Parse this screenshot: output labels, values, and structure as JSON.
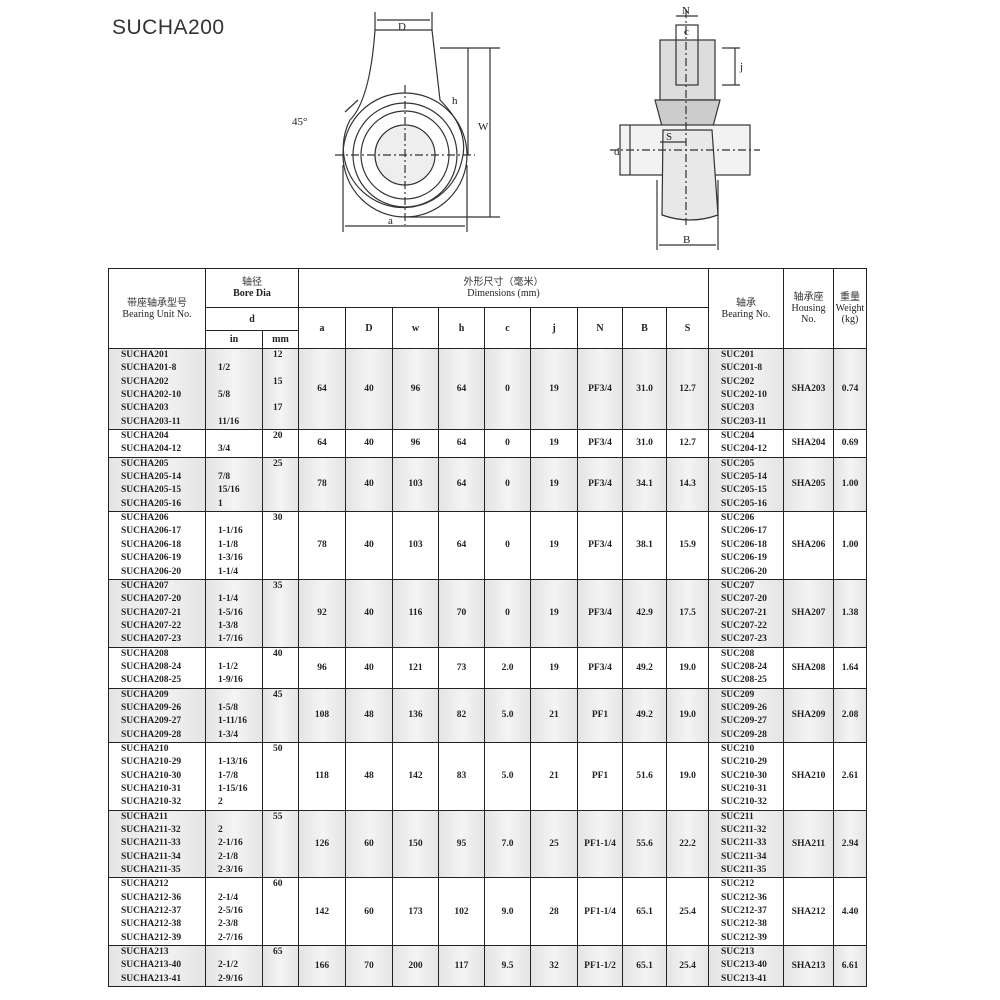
{
  "title": "SUCHA200",
  "drawing_labels": {
    "D": "D",
    "h": "h",
    "W": "W",
    "a": "a",
    "angle": "45°",
    "N": "N",
    "c": "c",
    "j": "j",
    "S": "S",
    "d": "d",
    "B": "B"
  },
  "header": {
    "unit_cn": "带座轴承型号",
    "unit_en": "Bearing Unit No.",
    "bore_cn": "轴径",
    "bore_en": "Bore Dia",
    "d": "d",
    "in": "in",
    "mm": "mm",
    "dims_cn": "外形尺寸（毫米）",
    "dims_en": "Dimensions (mm)",
    "cols": [
      "a",
      "D",
      "w",
      "h",
      "c",
      "j",
      "N",
      "B",
      "S"
    ],
    "bearing_cn": "轴承",
    "bearing_en": "Bearing No.",
    "housing_cn": "轴承座",
    "housing_en": "Housing No.",
    "weight_cn": "重量",
    "weight_en": "Weight (kg)"
  },
  "groups": [
    {
      "units": [
        {
          "no": "SUCHA201",
          "in": "",
          "mm": "12"
        },
        {
          "no": "SUCHA201-8",
          "in": "1/2",
          "mm": ""
        },
        {
          "no": "SUCHA202",
          "in": "",
          "mm": "15"
        },
        {
          "no": "SUCHA202-10",
          "in": "5/8",
          "mm": ""
        },
        {
          "no": "SUCHA203",
          "in": "",
          "mm": "17"
        },
        {
          "no": "SUCHA203-11",
          "in": "11/16",
          "mm": ""
        }
      ],
      "dims": [
        "64",
        "40",
        "96",
        "64",
        "0",
        "19",
        "PF3/4",
        "31.0",
        "12.7"
      ],
      "bearings": [
        "SUC201",
        "SUC201-8",
        "SUC202",
        "SUC202-10",
        "SUC203",
        "SUC203-11"
      ],
      "housing": "SHA203",
      "weight": "0.74"
    },
    {
      "units": [
        {
          "no": "SUCHA204",
          "in": "",
          "mm": "20"
        },
        {
          "no": "SUCHA204-12",
          "in": "3/4",
          "mm": ""
        }
      ],
      "dims": [
        "64",
        "40",
        "96",
        "64",
        "0",
        "19",
        "PF3/4",
        "31.0",
        "12.7"
      ],
      "bearings": [
        "SUC204",
        "SUC204-12"
      ],
      "housing": "SHA204",
      "weight": "0.69"
    },
    {
      "units": [
        {
          "no": "SUCHA205",
          "in": "",
          "mm": "25"
        },
        {
          "no": "SUCHA205-14",
          "in": "7/8",
          "mm": ""
        },
        {
          "no": "SUCHA205-15",
          "in": "15/16",
          "mm": ""
        },
        {
          "no": "SUCHA205-16",
          "in": "1",
          "mm": ""
        }
      ],
      "dims": [
        "78",
        "40",
        "103",
        "64",
        "0",
        "19",
        "PF3/4",
        "34.1",
        "14.3"
      ],
      "bearings": [
        "SUC205",
        "SUC205-14",
        "SUC205-15",
        "SUC205-16"
      ],
      "housing": "SHA205",
      "weight": "1.00"
    },
    {
      "units": [
        {
          "no": "SUCHA206",
          "in": "",
          "mm": "30"
        },
        {
          "no": "SUCHA206-17",
          "in": "1-1/16",
          "mm": ""
        },
        {
          "no": "SUCHA206-18",
          "in": "1-1/8",
          "mm": ""
        },
        {
          "no": "SUCHA206-19",
          "in": "1-3/16",
          "mm": ""
        },
        {
          "no": "SUCHA206-20",
          "in": "1-1/4",
          "mm": ""
        }
      ],
      "dims": [
        "78",
        "40",
        "103",
        "64",
        "0",
        "19",
        "PF3/4",
        "38.1",
        "15.9"
      ],
      "bearings": [
        "SUC206",
        "SUC206-17",
        "SUC206-18",
        "SUC206-19",
        "SUC206-20"
      ],
      "housing": "SHA206",
      "weight": "1.00"
    },
    {
      "units": [
        {
          "no": "SUCHA207",
          "in": "",
          "mm": "35"
        },
        {
          "no": "SUCHA207-20",
          "in": "1-1/4",
          "mm": ""
        },
        {
          "no": "SUCHA207-21",
          "in": "1-5/16",
          "mm": ""
        },
        {
          "no": "SUCHA207-22",
          "in": "1-3/8",
          "mm": ""
        },
        {
          "no": "SUCHA207-23",
          "in": "1-7/16",
          "mm": ""
        }
      ],
      "dims": [
        "92",
        "40",
        "116",
        "70",
        "0",
        "19",
        "PF3/4",
        "42.9",
        "17.5"
      ],
      "bearings": [
        "SUC207",
        "SUC207-20",
        "SUC207-21",
        "SUC207-22",
        "SUC207-23"
      ],
      "housing": "SHA207",
      "weight": "1.38"
    },
    {
      "units": [
        {
          "no": "SUCHA208",
          "in": "",
          "mm": "40"
        },
        {
          "no": "SUCHA208-24",
          "in": "1-1/2",
          "mm": ""
        },
        {
          "no": "SUCHA208-25",
          "in": "1-9/16",
          "mm": ""
        }
      ],
      "dims": [
        "96",
        "40",
        "121",
        "73",
        "2.0",
        "19",
        "PF3/4",
        "49.2",
        "19.0"
      ],
      "bearings": [
        "SUC208",
        "SUC208-24",
        "SUC208-25"
      ],
      "housing": "SHA208",
      "weight": "1.64"
    },
    {
      "units": [
        {
          "no": "SUCHA209",
          "in": "",
          "mm": "45"
        },
        {
          "no": "SUCHA209-26",
          "in": "1-5/8",
          "mm": ""
        },
        {
          "no": "SUCHA209-27",
          "in": "1-11/16",
          "mm": ""
        },
        {
          "no": "SUCHA209-28",
          "in": "1-3/4",
          "mm": ""
        }
      ],
      "dims": [
        "108",
        "48",
        "136",
        "82",
        "5.0",
        "21",
        "PF1",
        "49.2",
        "19.0"
      ],
      "bearings": [
        "SUC209",
        "SUC209-26",
        "SUC209-27",
        "SUC209-28"
      ],
      "housing": "SHA209",
      "weight": "2.08"
    },
    {
      "units": [
        {
          "no": "SUCHA210",
          "in": "",
          "mm": "50"
        },
        {
          "no": "SUCHA210-29",
          "in": "1-13/16",
          "mm": ""
        },
        {
          "no": "SUCHA210-30",
          "in": "1-7/8",
          "mm": ""
        },
        {
          "no": "SUCHA210-31",
          "in": "1-15/16",
          "mm": ""
        },
        {
          "no": "SUCHA210-32",
          "in": "2",
          "mm": ""
        }
      ],
      "dims": [
        "118",
        "48",
        "142",
        "83",
        "5.0",
        "21",
        "PF1",
        "51.6",
        "19.0"
      ],
      "bearings": [
        "SUC210",
        "SUC210-29",
        "SUC210-30",
        "SUC210-31",
        "SUC210-32"
      ],
      "housing": "SHA210",
      "weight": "2.61"
    },
    {
      "units": [
        {
          "no": "SUCHA211",
          "in": "",
          "mm": "55"
        },
        {
          "no": "SUCHA211-32",
          "in": "2",
          "mm": ""
        },
        {
          "no": "SUCHA211-33",
          "in": "2-1/16",
          "mm": ""
        },
        {
          "no": "SUCHA211-34",
          "in": "2-1/8",
          "mm": ""
        },
        {
          "no": "SUCHA211-35",
          "in": "2-3/16",
          "mm": ""
        }
      ],
      "dims": [
        "126",
        "60",
        "150",
        "95",
        "7.0",
        "25",
        "PF1-1/4",
        "55.6",
        "22.2"
      ],
      "bearings": [
        "SUC211",
        "SUC211-32",
        "SUC211-33",
        "SUC211-34",
        "SUC211-35"
      ],
      "housing": "SHA211",
      "weight": "2.94"
    },
    {
      "units": [
        {
          "no": "SUCHA212",
          "in": "",
          "mm": "60"
        },
        {
          "no": "SUCHA212-36",
          "in": "2-1/4",
          "mm": ""
        },
        {
          "no": "SUCHA212-37",
          "in": "2-5/16",
          "mm": ""
        },
        {
          "no": "SUCHA212-38",
          "in": "2-3/8",
          "mm": ""
        },
        {
          "no": "SUCHA212-39",
          "in": "2-7/16",
          "mm": ""
        }
      ],
      "dims": [
        "142",
        "60",
        "173",
        "102",
        "9.0",
        "28",
        "PF1-1/4",
        "65.1",
        "25.4"
      ],
      "bearings": [
        "SUC212",
        "SUC212-36",
        "SUC212-37",
        "SUC212-38",
        "SUC212-39"
      ],
      "housing": "SHA212",
      "weight": "4.40"
    },
    {
      "units": [
        {
          "no": "SUCHA213",
          "in": "",
          "mm": "65"
        },
        {
          "no": "SUCHA213-40",
          "in": "2-1/2",
          "mm": ""
        },
        {
          "no": "SUCHA213-41",
          "in": "2-9/16",
          "mm": ""
        }
      ],
      "dims": [
        "166",
        "70",
        "200",
        "117",
        "9.5",
        "32",
        "PF1-1/2",
        "65.1",
        "25.4"
      ],
      "bearings": [
        "SUC213",
        "SUC213-40",
        "SUC213-41"
      ],
      "housing": "SHA213",
      "weight": "6.61"
    }
  ]
}
